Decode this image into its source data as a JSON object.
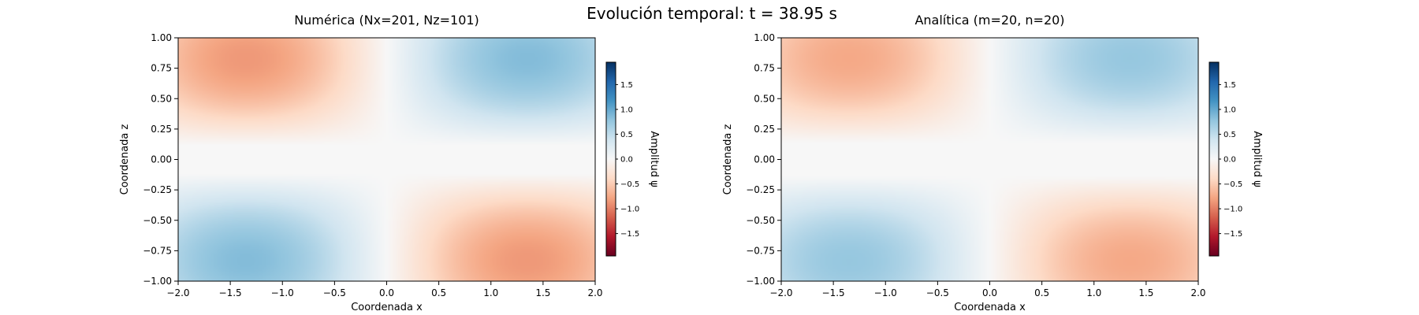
{
  "figure": {
    "suptitle": "Evolución temporal: t = 38.95 s"
  },
  "colormap": {
    "name": "RdBu",
    "stops": [
      "#67001f",
      "#b2182b",
      "#d6604d",
      "#f4a582",
      "#fddbc7",
      "#f7f7f7",
      "#d1e5f0",
      "#92c5de",
      "#4393c3",
      "#2166ac",
      "#053061"
    ]
  },
  "chart_data": [
    {
      "type": "heatmap",
      "title": "Numérica (Nx=201, Nz=101)",
      "xlabel": "Coordenada x",
      "ylabel": "Coordenada z",
      "xlim": [
        -2.0,
        2.0
      ],
      "ylim": [
        -1.0,
        1.0
      ],
      "xticks": [
        -2.0,
        -1.5,
        -1.0,
        -0.5,
        0.0,
        0.5,
        1.0,
        1.5,
        2.0
      ],
      "xtick_labels": [
        "−2.0",
        "−1.5",
        "−1.0",
        "−0.5",
        "0.0",
        "0.5",
        "1.0",
        "1.5",
        "2.0"
      ],
      "yticks": [
        1.0,
        0.75,
        0.5,
        0.25,
        0.0,
        -0.25,
        -0.5,
        -0.75,
        -1.0
      ],
      "ytick_labels": [
        "1.00",
        "0.75",
        "0.50",
        "0.25",
        "0.00",
        "−0.25",
        "−0.50",
        "−0.75",
        "−1.00"
      ],
      "field": {
        "amplitude": 0.85,
        "x_node": 0.0,
        "z_node": 0.12,
        "z_node_lower": -0.12
      },
      "colorbar": {
        "label": "Amplitud ψ",
        "vmin": -1.95,
        "vmax": 1.95,
        "ticks": [
          1.5,
          1.0,
          0.5,
          0.0,
          -0.5,
          -1.0,
          -1.5
        ],
        "tick_labels": [
          "1.5",
          "1.0",
          "0.5",
          "0.0",
          "−0.5",
          "−1.0",
          "−1.5"
        ]
      }
    },
    {
      "type": "heatmap",
      "title": "Analítica (m=20, n=20)",
      "xlabel": "Coordenada x",
      "ylabel": "Coordenada z",
      "xlim": [
        -2.0,
        2.0
      ],
      "ylim": [
        -1.0,
        1.0
      ],
      "xticks": [
        -2.0,
        -1.5,
        -1.0,
        -0.5,
        0.0,
        0.5,
        1.0,
        1.5,
        2.0
      ],
      "xtick_labels": [
        "−2.0",
        "−1.5",
        "−1.0",
        "−0.5",
        "0.0",
        "0.5",
        "1.0",
        "1.5",
        "2.0"
      ],
      "yticks": [
        1.0,
        0.75,
        0.5,
        0.25,
        0.0,
        -0.25,
        -0.5,
        -0.75,
        -1.0
      ],
      "ytick_labels": [
        "1.00",
        "0.75",
        "0.50",
        "0.25",
        "0.00",
        "−0.25",
        "−0.50",
        "−0.75",
        "−1.00"
      ],
      "field": {
        "amplitude": 0.75,
        "x_node": 0.0,
        "z_node": 0.14,
        "z_node_lower": -0.14
      },
      "colorbar": {
        "label": "Amplitud ψ",
        "vmin": -1.95,
        "vmax": 1.95,
        "ticks": [
          1.5,
          1.0,
          0.5,
          0.0,
          -0.5,
          -1.0,
          -1.5
        ],
        "tick_labels": [
          "1.5",
          "1.0",
          "0.5",
          "0.0",
          "−0.5",
          "−1.0",
          "−1.5"
        ]
      }
    }
  ]
}
